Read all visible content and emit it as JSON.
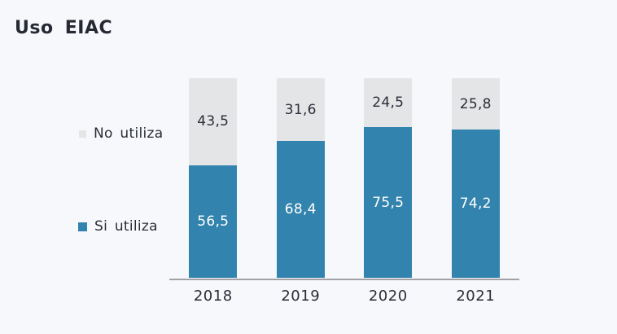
{
  "header": {
    "title": "Uso EIAC"
  },
  "legend": {
    "items": [
      {
        "label": "No utiliza",
        "color": "#e4e5e7"
      },
      {
        "label": "Si utiliza",
        "color": "#3283ad"
      }
    ]
  },
  "chart_data": {
    "type": "bar",
    "stacked": true,
    "percent": true,
    "title": "Uso EIAC",
    "xlabel": "",
    "ylabel": "",
    "ylim": [
      0,
      100
    ],
    "grid": false,
    "legend_position": "left",
    "categories": [
      "2018",
      "2019",
      "2020",
      "2021"
    ],
    "series": [
      {
        "name": "Si utiliza",
        "color": "#3283ad",
        "label_color": "#ffffff",
        "values": [
          56.5,
          68.4,
          75.5,
          74.2
        ],
        "display_values": [
          "56,5",
          "68,4",
          "75,5",
          "74,2"
        ]
      },
      {
        "name": "No utiliza",
        "color": "#e4e5e7",
        "label_color": "#2b2e38",
        "values": [
          43.5,
          31.6,
          24.5,
          25.8
        ],
        "display_values": [
          "43,5",
          "31,6",
          "24,5",
          "25,8"
        ]
      }
    ]
  },
  "colors": {
    "background": "#f7f8fb",
    "title_text": "#262833",
    "axis_line": "#a2a2a6",
    "label_dark": "#2b2e38",
    "label_light": "#ffffff"
  }
}
